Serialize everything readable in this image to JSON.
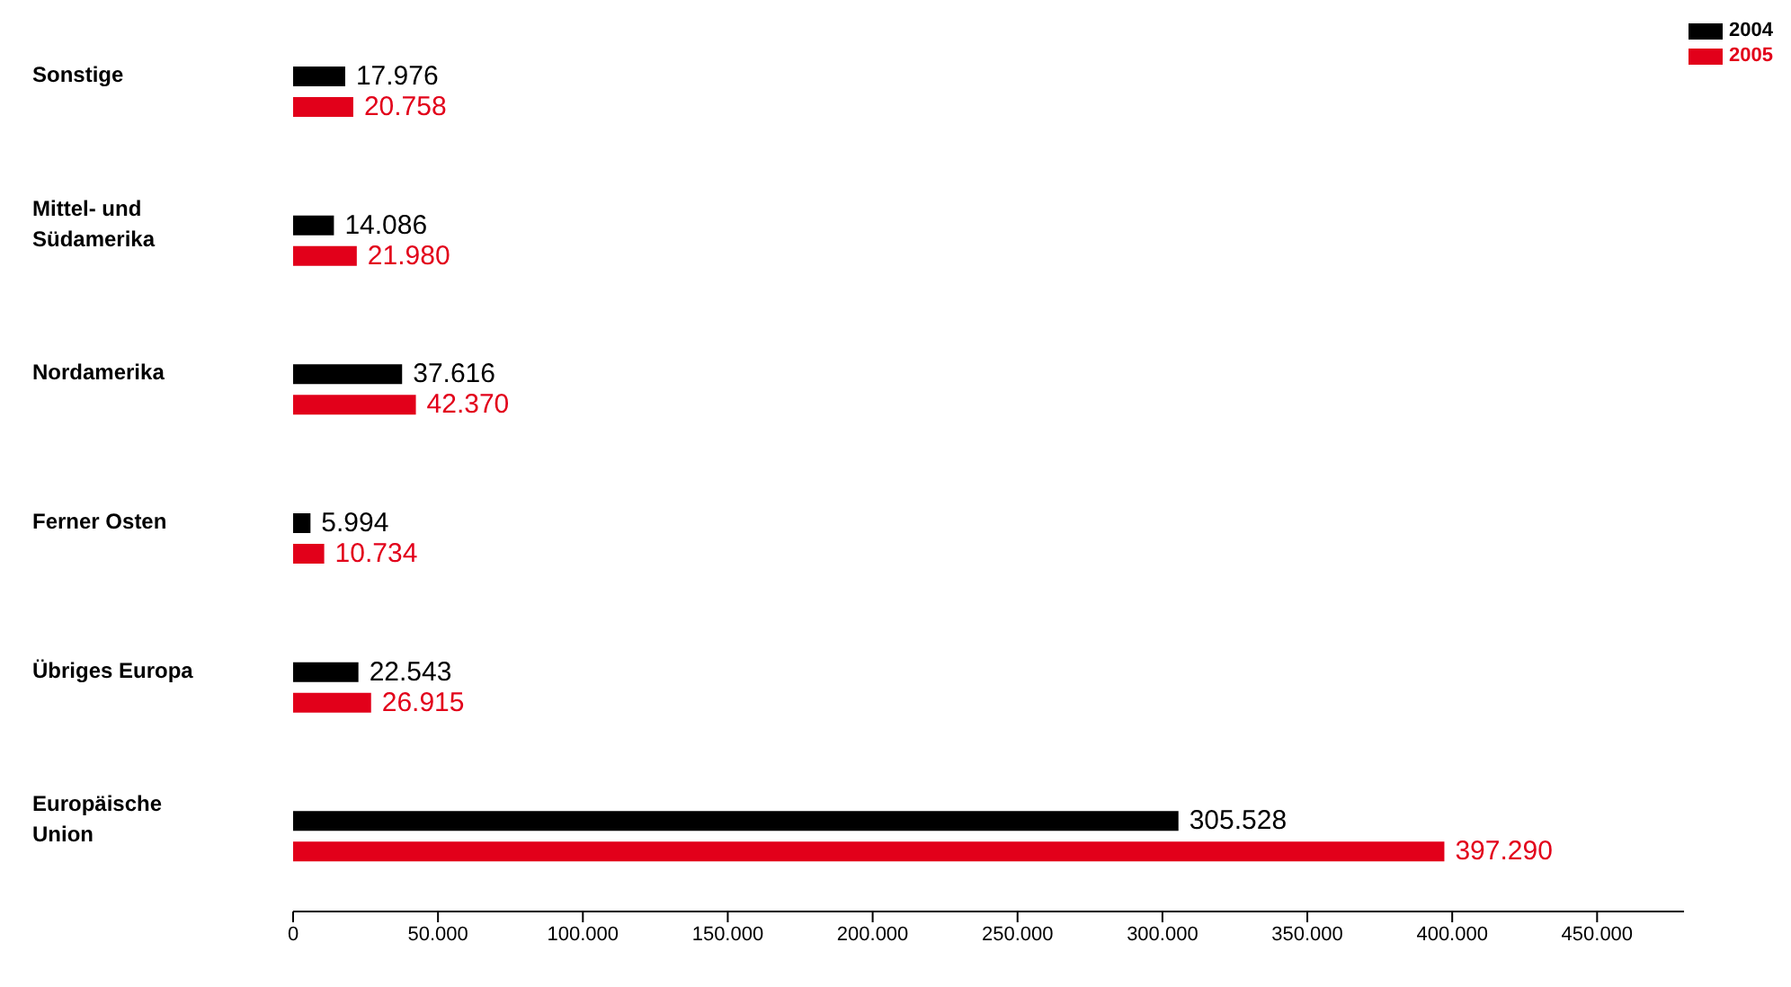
{
  "chart_data": {
    "type": "bar",
    "orientation": "horizontal",
    "categories": [
      "Sonstige",
      "Mittel- und Südamerika",
      "Nordamerika",
      "Ferner Osten",
      "Übriges Europa",
      "Europäische Union"
    ],
    "series": [
      {
        "name": "2004",
        "color": "#000000",
        "values": [
          17976,
          14086,
          37616,
          5994,
          22543,
          305528
        ],
        "value_labels": [
          "17.976",
          "14.086",
          "37.616",
          "5.994",
          "22.543",
          "305.528"
        ]
      },
      {
        "name": "2005",
        "color": "#e2001a",
        "values": [
          20758,
          21980,
          42370,
          10734,
          26915,
          397290
        ],
        "value_labels": [
          "20.758",
          "21.980",
          "42.370",
          "10.734",
          "26.915",
          "397.290"
        ]
      }
    ],
    "xlim": [
      0,
      480000
    ],
    "xticks": [
      0,
      {
        "value": 50000,
        "label": "50.000"
      },
      {
        "value": 100000,
        "label": "100.000"
      },
      {
        "value": 150000,
        "label": "150.000"
      },
      {
        "value": 200000,
        "label": "200.000"
      },
      {
        "value": 250000,
        "label": "250.000"
      },
      {
        "value": 300000,
        "label": "300.000"
      },
      {
        "value": 350000,
        "label": "350.000"
      },
      {
        "value": 400000,
        "label": "400.000"
      },
      {
        "value": 450000,
        "label": "450.000"
      }
    ],
    "grid": false,
    "legend": "top right"
  }
}
